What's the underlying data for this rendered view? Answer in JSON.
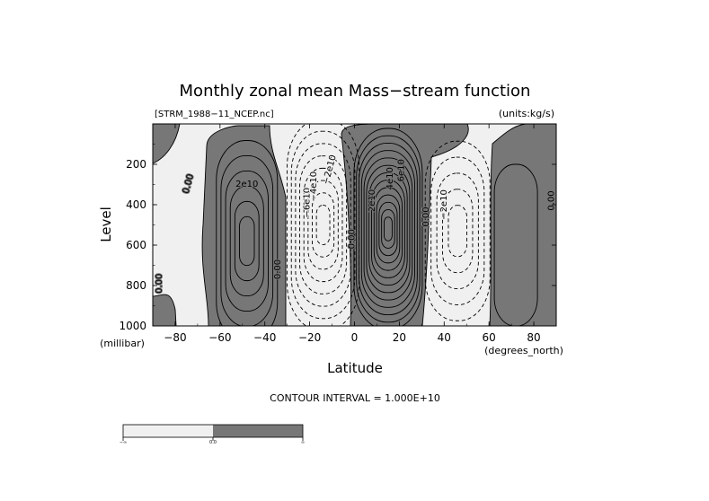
{
  "chart_data": {
    "type": "contour",
    "title": "Monthly zonal mean Mass−stream function",
    "source_file": "[STRM_1988−11_NCEP.nc]",
    "units": "(units:kg/s)",
    "xlabel": "Latitude",
    "x_units": "(degrees_north)",
    "ylabel": "Level",
    "y_units": "(millibar)",
    "xlim": [
      -90,
      90
    ],
    "ylim": [
      1000,
      0
    ],
    "x_ticks": [
      -80,
      -60,
      -40,
      -20,
      0,
      20,
      40,
      60,
      80
    ],
    "x_tick_labels": [
      "−80",
      "−60",
      "−40",
      "−20",
      "0",
      "20",
      "40",
      "60",
      "80"
    ],
    "y_ticks": [
      200,
      400,
      600,
      800,
      1000
    ],
    "y_tick_labels": [
      "200",
      "400",
      "600",
      "800",
      "1000"
    ],
    "contour_interval_label": "CONTOUR INTERVAL = 1.000E+10",
    "contour_interval": 10000000000.0,
    "positive_fill": "#777777",
    "negative_fill": "#f0f0f0",
    "cells": [
      {
        "center_lat": -48,
        "center_p": 580,
        "sign": 1,
        "peak_levels": 6
      },
      {
        "center_lat": -14,
        "center_p": 500,
        "sign": -1,
        "peak_levels": 8
      },
      {
        "center_lat": 15,
        "center_p": 520,
        "sign": 1,
        "peak_levels": 13
      },
      {
        "center_lat": 46,
        "center_p": 530,
        "sign": -1,
        "peak_levels": 5
      },
      {
        "center_lat": 72,
        "center_p": 600,
        "sign": 1,
        "peak_levels": 1
      }
    ],
    "contour_labels": [
      {
        "text": "0.00",
        "lat": -73,
        "p": 300,
        "angle": -75
      },
      {
        "text": "2e10",
        "lat": -48,
        "p": 310,
        "angle": 0
      },
      {
        "text": "0.00",
        "lat": -86,
        "p": 790,
        "angle": -90
      },
      {
        "text": "0.00",
        "lat": -33,
        "p": 720,
        "angle": -90
      },
      {
        "text": "−6e10",
        "lat": -20,
        "p": 390,
        "angle": -90
      },
      {
        "text": "−4e10",
        "lat": -17,
        "p": 310,
        "angle": -90
      },
      {
        "text": "−2e10",
        "lat": -10,
        "p": 230,
        "angle": -75
      },
      {
        "text": "0.00",
        "lat": 0,
        "p": 570,
        "angle": -90
      },
      {
        "text": "2e10",
        "lat": 9,
        "p": 380,
        "angle": -90
      },
      {
        "text": "4e10",
        "lat": 17,
        "p": 270,
        "angle": -90
      },
      {
        "text": "6e10",
        "lat": 22,
        "p": 230,
        "angle": -90
      },
      {
        "text": "0.00",
        "lat": 33,
        "p": 460,
        "angle": -90
      },
      {
        "text": "−2e10",
        "lat": 41,
        "p": 400,
        "angle": -90
      },
      {
        "text": "0.00",
        "lat": 89,
        "p": 380,
        "angle": -90
      }
    ],
    "colorbar": {
      "labels": [
        "−∞",
        "0.0",
        "∞"
      ],
      "colors": [
        "#f0f0f0",
        "#777777"
      ]
    }
  }
}
